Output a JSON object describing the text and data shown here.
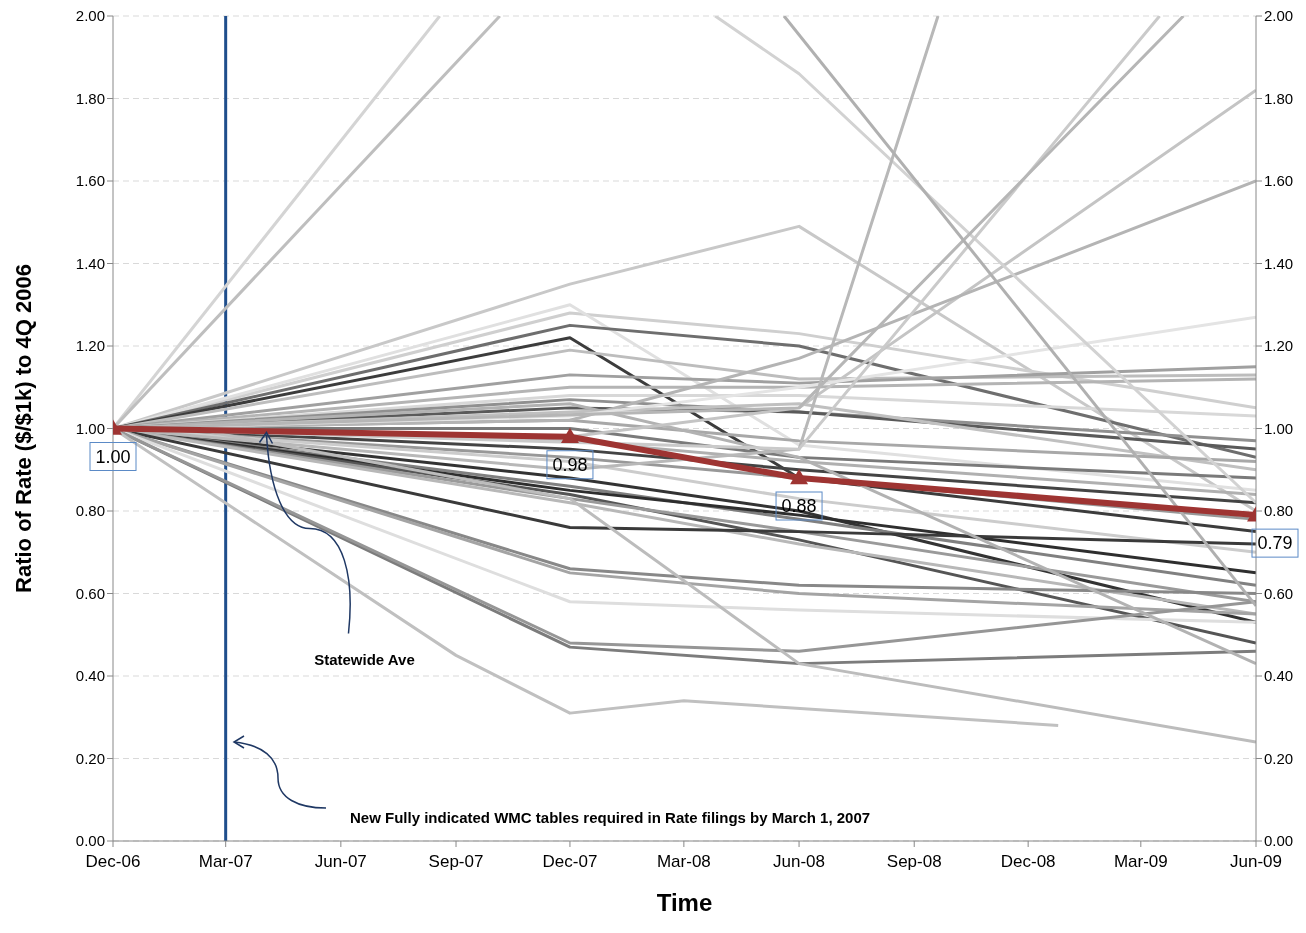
{
  "chart_data": {
    "type": "line",
    "xlabel": "Time",
    "ylabel": "Ratio of Rate ($/$1k) to 4Q 2006",
    "x": [
      "2006-12",
      "2007-12",
      "2008-06",
      "2009-06"
    ],
    "xlim": [
      "2006-12",
      "2009-06"
    ],
    "xticks": [
      {
        "value": "2006-12",
        "label": "Dec-06"
      },
      {
        "value": "2007-03",
        "label": "Mar-07"
      },
      {
        "value": "2007-06",
        "label": "Jun-07"
      },
      {
        "value": "2007-09",
        "label": "Sep-07"
      },
      {
        "value": "2007-12",
        "label": "Dec-07"
      },
      {
        "value": "2008-03",
        "label": "Mar-08"
      },
      {
        "value": "2008-06",
        "label": "Jun-08"
      },
      {
        "value": "2008-09",
        "label": "Sep-08"
      },
      {
        "value": "2008-12",
        "label": "Dec-08"
      },
      {
        "value": "2009-03",
        "label": "Mar-09"
      },
      {
        "value": "2009-06",
        "label": "Jun-09"
      }
    ],
    "ylim": [
      0,
      2
    ],
    "yticks": [
      {
        "value": 0,
        "label": "0.00"
      },
      {
        "value": 0.2,
        "label": "0.20"
      },
      {
        "value": 0.4,
        "label": "0.40"
      },
      {
        "value": 0.6,
        "label": "0.60"
      },
      {
        "value": 0.8,
        "label": "0.80"
      },
      {
        "value": 1,
        "label": "1.00"
      },
      {
        "value": 1.2,
        "label": "1.20"
      },
      {
        "value": 1.4,
        "label": "1.40"
      },
      {
        "value": 1.6,
        "label": "1.60"
      },
      {
        "value": 1.8,
        "label": "1.80"
      },
      {
        "value": 2,
        "label": "2.00"
      }
    ],
    "y2lim": [
      0,
      2
    ],
    "y2ticks": [
      {
        "value": 0,
        "label": "0.00"
      },
      {
        "value": 0.2,
        "label": "0.20"
      },
      {
        "value": 0.4,
        "label": "0.40"
      },
      {
        "value": 0.6,
        "label": "0.60"
      },
      {
        "value": 0.8,
        "label": "0.80"
      },
      {
        "value": 1,
        "label": "1.00"
      },
      {
        "value": 1.2,
        "label": "1.20"
      },
      {
        "value": 1.4,
        "label": "1.40"
      },
      {
        "value": 1.6,
        "label": "1.60"
      },
      {
        "value": 1.8,
        "label": "1.80"
      },
      {
        "value": 2,
        "label": "2.00"
      }
    ],
    "grid": "y",
    "marker": "none",
    "line_style": "solid",
    "ref_lines": [
      {
        "axis": "x",
        "value": "2007-03",
        "color": "#1f4e8c"
      }
    ],
    "annotations": [
      {
        "text": "Statewide Ave",
        "x": "2007-04",
        "y": 1.0
      },
      "New Fully indicated WMC tables required in Rate  filings by March 1, 2007"
    ],
    "series": [
      {
        "color": "#c8c8c8",
        "values": [
          1,
          1.35,
          1.49,
          0.8
        ]
      },
      {
        "color": "#cfcfcf",
        "values": [
          1,
          1.28,
          1.23,
          1.05
        ]
      },
      {
        "color": "#e0e0e0",
        "values": [
          1,
          1.3,
          0.96,
          0.85
        ]
      },
      {
        "color": "#6e6e6e",
        "values": [
          1,
          1.25,
          1.2,
          0.93
        ]
      },
      {
        "color": "#3c3c3c",
        "values": [
          1,
          1.22,
          0.88,
          0.75
        ]
      },
      {
        "color": "#bdbdbd",
        "values": [
          1,
          1.19,
          1.12,
          1.13
        ]
      },
      {
        "color": "#a0a0a0",
        "values": [
          1,
          1.13,
          1.11,
          1.15
        ]
      },
      {
        "color": "#b4b4b4",
        "values": [
          1,
          1.1,
          1.1,
          1.12
        ]
      },
      {
        "color": "#d8d8d8",
        "values": [
          1,
          1.08,
          1.08,
          1.03
        ]
      },
      {
        "color": "#909090",
        "values": [
          1,
          1.07,
          1.04,
          0.97
        ]
      },
      {
        "color": "#5a5a5a",
        "values": [
          1,
          1.05,
          1.04,
          0.95
        ]
      },
      {
        "color": "#c0c0c0",
        "values": [
          1,
          1.04,
          1.06,
          0.9
        ]
      },
      {
        "color": "#a8a8a8",
        "values": [
          1,
          1.02,
          0.97,
          0.92
        ]
      },
      {
        "color": "#7a7a7a",
        "values": [
          1,
          1.0,
          0.93,
          0.88
        ]
      },
      {
        "color": "#b0b0b0",
        "values": [
          1,
          0.97,
          0.92,
          0.84
        ]
      },
      {
        "color": "#444444",
        "values": [
          1,
          0.95,
          0.9,
          0.82
        ]
      },
      {
        "color": "#989898",
        "values": [
          1,
          0.93,
          0.88,
          0.78
        ]
      },
      {
        "color": "#cccccc",
        "values": [
          1,
          0.92,
          0.83,
          0.7
        ]
      },
      {
        "color": "#333333",
        "values": [
          1,
          0.88,
          0.8,
          0.53
        ]
      },
      {
        "color": "#808080",
        "values": [
          1,
          0.86,
          0.78,
          0.62
        ]
      },
      {
        "color": "#2e2e2e",
        "values": [
          1,
          0.85,
          0.79,
          0.65
        ]
      },
      {
        "color": "#555555",
        "values": [
          1,
          0.84,
          0.73,
          0.48
        ]
      },
      {
        "color": "#9a9a9a",
        "values": [
          1,
          0.83,
          0.75,
          0.58
        ]
      },
      {
        "color": "#b8b8b8",
        "values": [
          1,
          0.82,
          0.72,
          0.55
        ]
      },
      {
        "color": "#3a3a3a",
        "values": [
          1,
          0.76,
          0.75,
          0.72
        ]
      },
      {
        "color": "#888888",
        "values": [
          1,
          0.66,
          0.62,
          0.6
        ]
      },
      {
        "color": "#a4a4a4",
        "values": [
          1,
          0.65,
          0.6,
          0.55
        ]
      },
      {
        "color": "#dedede",
        "values": [
          1,
          0.58,
          0.56,
          0.53
        ]
      },
      {
        "color": "#7c7c7c",
        "values": [
          1,
          0.47,
          0.43,
          0.46
        ]
      },
      {
        "color": "#969696",
        "values": [
          1,
          0.48,
          0.46,
          0.58
        ]
      },
      {
        "color": "#b2b2b2",
        "values": [
          1,
          1.06,
          0.93,
          0.43
        ]
      },
      {
        "color": "#c4c4c4",
        "values": [
          1,
          0.98,
          1.05,
          1.82
        ]
      },
      {
        "color": "#b4b4b4",
        "values": [
          1,
          1.02,
          1.17,
          1.6
        ]
      },
      {
        "color": "#e4e4e4",
        "values": [
          1,
          1.03,
          1.1,
          1.27
        ]
      },
      {
        "color": "#d4d4d4",
        "x": [
          "2006-12",
          "2007-08-19"
        ],
        "values": [
          1,
          2.0
        ]
      },
      {
        "color": "#bebebe",
        "x": [
          "2006-12",
          "2007-10-06"
        ],
        "values": [
          1,
          2.0
        ]
      },
      {
        "color": "#d2d2d2",
        "x": [
          "2008-03-26",
          "2008-06",
          "2009-06"
        ],
        "values": [
          2.0,
          1.86,
          0.82
        ]
      },
      {
        "color": "#b8b8b8",
        "x": [
          "2006-12",
          "2007-12",
          "2008-06",
          "2008-09-20"
        ],
        "values": [
          1,
          0.9,
          0.95,
          2.0
        ]
      },
      {
        "color": "#cacaca",
        "x": [
          "2006-12",
          "2008-06",
          "2009-03-16"
        ],
        "values": [
          1,
          0.95,
          2.0
        ]
      },
      {
        "color": "#b6b6b6",
        "x": [
          "2006-12",
          "2008-06",
          "2009-04-04"
        ],
        "values": [
          1,
          1.05,
          2.0
        ]
      },
      {
        "color": "#b0b0b0",
        "x": [
          "2008-05-20",
          "2009-06"
        ],
        "values": [
          2.0,
          0.57
        ]
      },
      {
        "color": "#c0c0c0",
        "x": [
          "2006-12",
          "2007-09",
          "2007-12",
          "2008-03",
          "2008-12-25"
        ],
        "values": [
          1,
          0.45,
          0.31,
          0.34,
          0.28
        ]
      },
      {
        "color": "#bcbcbc",
        "x": [
          "2007-02",
          "2007-12",
          "2008-06",
          "2009-06"
        ],
        "values": [
          1,
          0.83,
          0.43,
          0.24
        ]
      },
      {
        "color": "#9e3432",
        "marker": "triangle",
        "values": [
          1.0,
          0.98,
          0.88,
          0.79
        ],
        "value_labels": [
          "1.00",
          "0.98",
          "0.88",
          "0.79"
        ]
      }
    ]
  }
}
